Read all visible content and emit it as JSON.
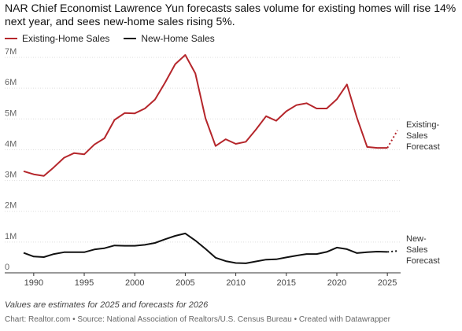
{
  "title": "NAR Chief Economist Lawrence Yun forecasts sales volume for existing homes will rise 14% next year, and sees new-home sales rising 5%.",
  "note": "Values are estimates for 2025 and forecasts for 2026",
  "credit": "Chart: Realtor.com • Source: National Association of Realtors/U.S. Census Bureau • Created with Datawrapper",
  "colors": {
    "existing": "#b5262b",
    "new": "#111111",
    "grid": "#dddddd",
    "axis": "#333333"
  },
  "chart_data": {
    "type": "line",
    "title": "NAR Chief Economist Lawrence Yun forecasts sales volume for existing homes will rise 14% next year, and sees new-home sales rising 5%.",
    "xlabel": "",
    "ylabel": "",
    "xlim": [
      1989,
      2026
    ],
    "ylim": [
      0,
      7000000
    ],
    "grid": true,
    "legend_position": "top-left",
    "x_ticks": [
      1990,
      1995,
      2000,
      2005,
      2010,
      2015,
      2020,
      2025
    ],
    "y_ticks": [
      {
        "value": 0,
        "label": "0"
      },
      {
        "value": 1000000,
        "label": "1M"
      },
      {
        "value": 2000000,
        "label": "2M"
      },
      {
        "value": 3000000,
        "label": "3M"
      },
      {
        "value": 4000000,
        "label": "4M"
      },
      {
        "value": 5000000,
        "label": "5M"
      },
      {
        "value": 6000000,
        "label": "6M"
      },
      {
        "value": 7000000,
        "label": "7M"
      }
    ],
    "x": [
      1989,
      1990,
      1991,
      1992,
      1993,
      1994,
      1995,
      1996,
      1997,
      1998,
      1999,
      2000,
      2001,
      2002,
      2003,
      2004,
      2005,
      2006,
      2007,
      2008,
      2009,
      2010,
      2011,
      2012,
      2013,
      2014,
      2015,
      2016,
      2017,
      2018,
      2019,
      2020,
      2021,
      2022,
      2023,
      2024,
      2025
    ],
    "series": [
      {
        "name": "Existing-Home Sales",
        "values": [
          3300000,
          3200000,
          3150000,
          3430000,
          3740000,
          3890000,
          3850000,
          4170000,
          4370000,
          4970000,
          5190000,
          5180000,
          5340000,
          5630000,
          6180000,
          6780000,
          7080000,
          6480000,
          5020000,
          4120000,
          4340000,
          4190000,
          4260000,
          4660000,
          5090000,
          4940000,
          5250000,
          5450000,
          5510000,
          5340000,
          5340000,
          5640000,
          6120000,
          5030000,
          4090000,
          4060000,
          4060000
        ],
        "forecast": {
          "x": [
            2025,
            2026
          ],
          "values": [
            4060000,
            4630000
          ]
        },
        "label": "Existing-Sales Forecast"
      },
      {
        "name": "New-Home Sales",
        "values": [
          650000,
          530000,
          510000,
          610000,
          670000,
          670000,
          670000,
          760000,
          800000,
          890000,
          880000,
          880000,
          910000,
          970000,
          1090000,
          1200000,
          1280000,
          1050000,
          780000,
          490000,
          380000,
          320000,
          310000,
          370000,
          430000,
          440000,
          500000,
          560000,
          610000,
          610000,
          680000,
          820000,
          770000,
          640000,
          670000,
          690000,
          680000
        ],
        "forecast": {
          "x": [
            2025,
            2026
          ],
          "values": [
            680000,
            710000
          ]
        },
        "label": "New-Sales Forecast"
      }
    ]
  }
}
